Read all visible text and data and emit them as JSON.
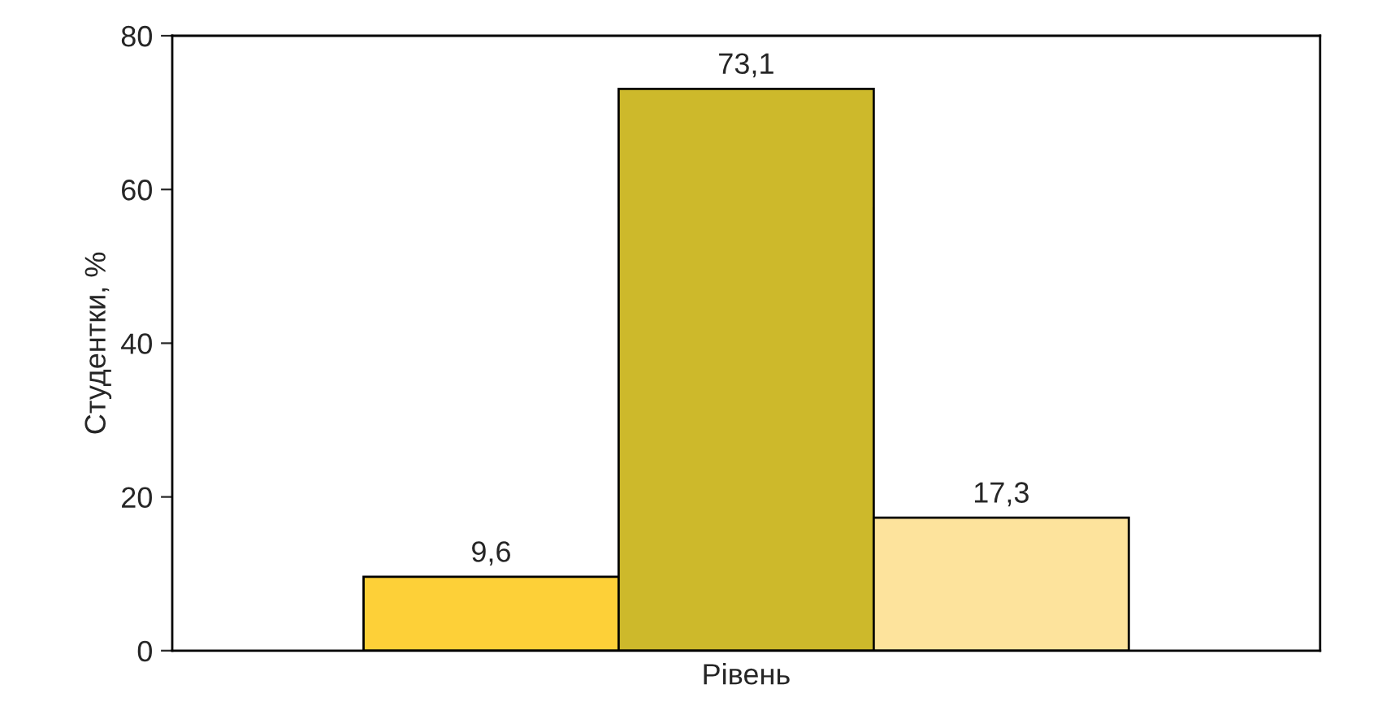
{
  "chart_data": {
    "type": "bar",
    "xlabel": "Рівень",
    "ylabel": "Студентки, %",
    "categories": [
      null,
      null,
      null
    ],
    "values": [
      9.6,
      73.1,
      17.3
    ],
    "colors": [
      "#fdd038",
      "#cdb92b",
      "#fde39c"
    ],
    "value_labels": [
      "9,6",
      "73,1",
      "17,3"
    ],
    "ylim": [
      0,
      80
    ],
    "yticks": [
      0,
      20,
      40,
      60,
      80
    ],
    "grid": false,
    "legend": false
  }
}
